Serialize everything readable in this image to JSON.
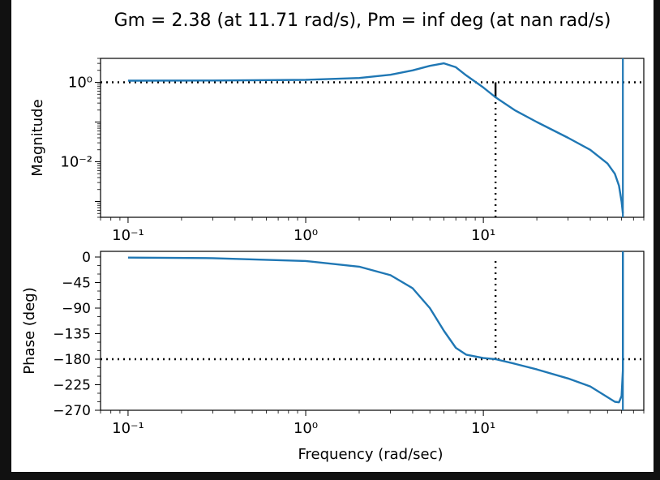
{
  "colors": {
    "background": "#111111",
    "figure": "#ffffff",
    "series": "#1f77b4",
    "reference": "#000000"
  },
  "chart_data": {
    "type": "line",
    "title": "Gm = 2.38 (at 11.71 rad/s), Pm = inf deg (at nan rad/s)",
    "xlabel": "Frequency (rad/sec)",
    "xscale": "log",
    "xlim": [
      0.07,
      80
    ],
    "x_tick_values": [
      0.1,
      1,
      10
    ],
    "grid": false,
    "panels": [
      {
        "name": "magnitude",
        "ylabel": "Magnitude",
        "yscale": "log",
        "ylim": [
          0.0004,
          4
        ],
        "y_tick_values": [
          1,
          0.01
        ],
        "x": [
          0.1,
          0.3,
          1,
          2,
          3,
          4,
          5,
          6,
          7,
          8,
          10,
          11.71,
          15,
          20,
          30,
          40,
          50,
          55,
          58,
          60,
          61
        ],
        "y": [
          1.1,
          1.11,
          1.15,
          1.28,
          1.55,
          2.0,
          2.6,
          3.0,
          2.4,
          1.5,
          0.74,
          0.42,
          0.2,
          0.1,
          0.04,
          0.02,
          0.009,
          0.005,
          0.0025,
          0.001,
          0.0005
        ],
        "reference_lines": [
          {
            "orientation": "horizontal",
            "y": 1,
            "style": "dotted"
          },
          {
            "orientation": "vertical",
            "x": 11.71,
            "y_range": [
              0.0004,
              0.42
            ],
            "style": "dotted"
          },
          {
            "orientation": "vertical",
            "x": 11.71,
            "y_range": [
              0.42,
              1
            ],
            "style": "solid"
          },
          {
            "orientation": "vertical",
            "x": 61,
            "style": "solid",
            "series_color": true
          }
        ]
      },
      {
        "name": "phase",
        "ylabel": "Phase (deg)",
        "yscale": "linear",
        "ylim": [
          -270,
          10
        ],
        "y_tick_values": [
          0,
          -45,
          -90,
          -135,
          -180,
          -225,
          -270
        ],
        "y_tick_labels": [
          "0",
          "−45",
          "−90",
          "−135",
          "−180",
          "−225",
          "−270"
        ],
        "x": [
          0.1,
          0.3,
          1,
          2,
          3,
          4,
          5,
          6,
          7,
          8,
          10,
          11.71,
          15,
          20,
          30,
          40,
          50,
          55,
          58,
          60,
          61,
          61
        ],
        "y": [
          -1,
          -2,
          -7,
          -17,
          -32,
          -55,
          -90,
          -130,
          -160,
          -172,
          -178,
          -180,
          -188,
          -198,
          -214,
          -228,
          -247,
          -255,
          -256,
          -245,
          -200,
          10
        ],
        "reference_lines": [
          {
            "orientation": "horizontal",
            "y": -180,
            "style": "dotted"
          },
          {
            "orientation": "vertical",
            "x": 11.71,
            "y_range": [
              -180,
              0
            ],
            "style": "dotted"
          },
          {
            "orientation": "vertical",
            "x": 61,
            "style": "solid",
            "series_color": true
          }
        ]
      }
    ]
  }
}
